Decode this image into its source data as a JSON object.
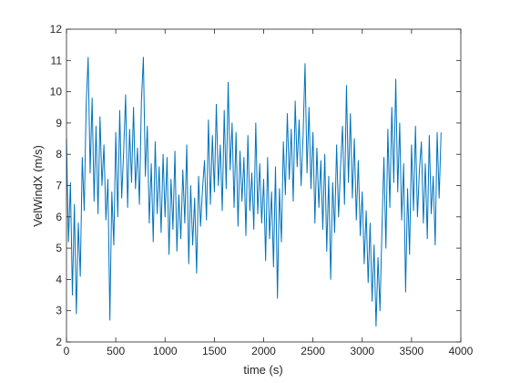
{
  "chart_data": {
    "type": "line",
    "xlabel": "time (s)",
    "ylabel": "VelWindX (m/s)",
    "xlim": [
      0,
      4000
    ],
    "xticks": [
      0,
      500,
      1000,
      1500,
      2000,
      2500,
      3000,
      3500,
      4000
    ],
    "ylim": [
      2,
      12
    ],
    "yticks": [
      2,
      3,
      4,
      5,
      6,
      7,
      8,
      9,
      10,
      11,
      12
    ],
    "grid": false,
    "x": [
      0,
      20,
      40,
      60,
      80,
      100,
      120,
      140,
      160,
      180,
      200,
      220,
      240,
      260,
      280,
      300,
      320,
      340,
      360,
      380,
      400,
      420,
      440,
      460,
      480,
      500,
      520,
      540,
      560,
      580,
      600,
      620,
      640,
      660,
      680,
      700,
      720,
      740,
      760,
      780,
      800,
      820,
      840,
      860,
      880,
      900,
      920,
      940,
      960,
      980,
      1000,
      1020,
      1040,
      1060,
      1080,
      1100,
      1120,
      1140,
      1160,
      1180,
      1200,
      1220,
      1240,
      1260,
      1280,
      1300,
      1320,
      1340,
      1360,
      1380,
      1400,
      1420,
      1440,
      1460,
      1480,
      1500,
      1520,
      1540,
      1560,
      1580,
      1600,
      1620,
      1640,
      1660,
      1680,
      1700,
      1720,
      1740,
      1760,
      1780,
      1800,
      1820,
      1840,
      1860,
      1880,
      1900,
      1920,
      1940,
      1960,
      1980,
      2000,
      2020,
      2040,
      2060,
      2080,
      2100,
      2120,
      2140,
      2160,
      2180,
      2200,
      2220,
      2240,
      2260,
      2280,
      2300,
      2320,
      2340,
      2360,
      2380,
      2400,
      2420,
      2440,
      2460,
      2480,
      2500,
      2520,
      2540,
      2560,
      2580,
      2600,
      2620,
      2640,
      2660,
      2680,
      2700,
      2720,
      2740,
      2760,
      2780,
      2800,
      2820,
      2840,
      2860,
      2880,
      2900,
      2920,
      2940,
      2960,
      2980,
      3000,
      3020,
      3040,
      3060,
      3080,
      3100,
      3120,
      3140,
      3160,
      3180,
      3200,
      3220,
      3240,
      3260,
      3280,
      3300,
      3320,
      3340,
      3360,
      3380,
      3400,
      3420,
      3440,
      3460,
      3480,
      3500,
      3520,
      3540,
      3560,
      3580,
      3600,
      3620,
      3640,
      3660,
      3680,
      3700,
      3720,
      3740,
      3760,
      3780,
      3800
    ],
    "series": [
      {
        "color": "#0072bd",
        "values": [
          8.5,
          5.2,
          7.1,
          3.5,
          6.4,
          2.9,
          5.8,
          4.1,
          7.9,
          6.2,
          9.6,
          11.1,
          7.4,
          9.8,
          6.5,
          8.9,
          6.1,
          9.2,
          7.0,
          8.3,
          5.9,
          7.2,
          2.7,
          6.8,
          5.1,
          8.7,
          6.0,
          9.4,
          6.6,
          8.1,
          9.9,
          6.3,
          8.8,
          7.1,
          9.5,
          6.9,
          8.2,
          6.4,
          9.7,
          11.1,
          7.3,
          8.9,
          5.8,
          7.7,
          5.2,
          8.4,
          6.1,
          7.6,
          5.5,
          8.0,
          6.0,
          7.9,
          4.8,
          7.2,
          5.6,
          8.1,
          4.9,
          6.7,
          5.3,
          7.5,
          5.8,
          8.3,
          4.5,
          7.0,
          5.1,
          6.6,
          4.2,
          7.3,
          5.7,
          6.9,
          7.8,
          5.9,
          9.1,
          6.4,
          8.6,
          6.8,
          9.6,
          7.0,
          8.3,
          6.2,
          9.4,
          6.9,
          10.3,
          7.5,
          9.0,
          6.3,
          8.7,
          5.7,
          8.1,
          6.5,
          7.9,
          5.4,
          8.6,
          6.2,
          7.4,
          5.6,
          9.0,
          6.1,
          7.7,
          5.8,
          7.2,
          4.6,
          7.9,
          5.3,
          6.8,
          4.4,
          7.6,
          3.4,
          6.9,
          5.2,
          8.4,
          6.7,
          9.3,
          7.2,
          8.8,
          6.5,
          9.7,
          7.6,
          9.1,
          7.0,
          8.6,
          10.9,
          7.4,
          9.5,
          6.9,
          8.7,
          5.8,
          8.2,
          6.3,
          7.8,
          5.6,
          8.0,
          4.9,
          7.3,
          4.0,
          7.1,
          5.5,
          8.3,
          6.0,
          7.6,
          8.9,
          6.4,
          10.2,
          7.1,
          9.3,
          6.6,
          8.5,
          5.9,
          7.8,
          5.4,
          6.8,
          4.5,
          6.2,
          3.9,
          5.8,
          3.3,
          5.1,
          2.5,
          4.7,
          3.0,
          5.6,
          7.9,
          5.0,
          8.8,
          6.3,
          9.5,
          7.1,
          10.4,
          6.8,
          9.0,
          5.9,
          7.7,
          3.6,
          6.9,
          4.8,
          8.3,
          6.2,
          8.9,
          6.0,
          7.5,
          8.4,
          5.8,
          7.7,
          5.3,
          8.6,
          6.1,
          7.3,
          5.1,
          8.7,
          6.6,
          8.7
        ]
      }
    ]
  }
}
